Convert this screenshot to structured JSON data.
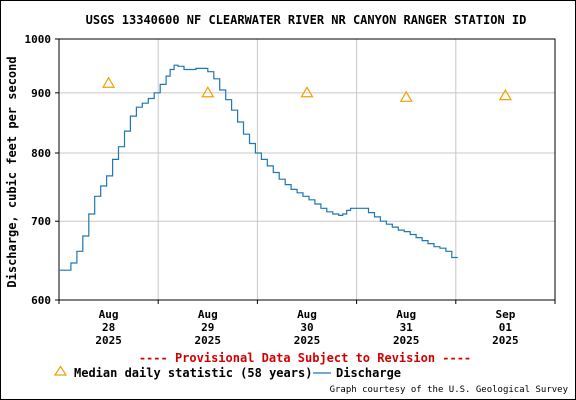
{
  "chart_data": {
    "type": "line",
    "title": "USGS 13340600 NF CLEARWATER RIVER NR CANYON RANGER STATION ID",
    "ylabel": "Discharge, cubic feet per second",
    "xlabel": "",
    "y_scale": "log",
    "ylim": [
      600,
      1000
    ],
    "y_ticks": [
      600,
      700,
      800,
      900,
      1000
    ],
    "y_tick_labels": [
      "600",
      "700",
      "800",
      "900",
      "1000"
    ],
    "x_range_days": [
      0,
      2.0
    ],
    "x_ticks": [
      {
        "day": 0.5,
        "lines": [
          "Aug",
          "28",
          "2025"
        ]
      },
      {
        "day": 1.5,
        "lines": [
          "Aug",
          "29",
          "2025"
        ]
      },
      {
        "day": 2.5,
        "lines": [
          "Aug",
          "30",
          "2025"
        ]
      },
      {
        "day": 3.5,
        "lines": [
          "Aug",
          "31",
          "2025"
        ]
      },
      {
        "day": 4.5,
        "lines": [
          "Sep",
          "01",
          "2025"
        ]
      }
    ],
    "x_range": [
      0,
      5
    ],
    "grid": true,
    "provisional_note": "---- Provisional Data Subject to Revision ----",
    "series": [
      {
        "name": "Discharge",
        "color": "#1f77b4",
        "style": "line",
        "points": [
          [
            0.0,
            636
          ],
          [
            0.08,
            636
          ],
          [
            0.12,
            645
          ],
          [
            0.18,
            660
          ],
          [
            0.24,
            680
          ],
          [
            0.3,
            710
          ],
          [
            0.36,
            735
          ],
          [
            0.42,
            750
          ],
          [
            0.48,
            765
          ],
          [
            0.54,
            790
          ],
          [
            0.6,
            810
          ],
          [
            0.66,
            835
          ],
          [
            0.72,
            860
          ],
          [
            0.78,
            875
          ],
          [
            0.84,
            882
          ],
          [
            0.9,
            890
          ],
          [
            0.96,
            900
          ],
          [
            1.02,
            915
          ],
          [
            1.08,
            930
          ],
          [
            1.12,
            942
          ],
          [
            1.16,
            950
          ],
          [
            1.2,
            948
          ],
          [
            1.26,
            942
          ],
          [
            1.32,
            942
          ],
          [
            1.38,
            944
          ],
          [
            1.44,
            944
          ],
          [
            1.5,
            938
          ],
          [
            1.56,
            925
          ],
          [
            1.62,
            905
          ],
          [
            1.68,
            888
          ],
          [
            1.74,
            870
          ],
          [
            1.8,
            850
          ],
          [
            1.86,
            830
          ],
          [
            1.92,
            815
          ],
          [
            1.98,
            800
          ],
          [
            2.04,
            790
          ],
          [
            2.1,
            780
          ],
          [
            2.16,
            770
          ],
          [
            2.22,
            760
          ],
          [
            2.28,
            752
          ],
          [
            2.34,
            745
          ],
          [
            2.4,
            740
          ],
          [
            2.46,
            735
          ],
          [
            2.52,
            730
          ],
          [
            2.58,
            724
          ],
          [
            2.64,
            718
          ],
          [
            2.7,
            713
          ],
          [
            2.76,
            710
          ],
          [
            2.82,
            708
          ],
          [
            2.86,
            710
          ],
          [
            2.9,
            715
          ],
          [
            2.94,
            718
          ],
          [
            3.0,
            718
          ],
          [
            3.06,
            718
          ],
          [
            3.12,
            712
          ],
          [
            3.18,
            706
          ],
          [
            3.24,
            700
          ],
          [
            3.3,
            696
          ],
          [
            3.36,
            692
          ],
          [
            3.42,
            688
          ],
          [
            3.48,
            686
          ],
          [
            3.54,
            682
          ],
          [
            3.6,
            678
          ],
          [
            3.66,
            674
          ],
          [
            3.72,
            670
          ],
          [
            3.78,
            666
          ],
          [
            3.84,
            664
          ],
          [
            3.9,
            660
          ],
          [
            3.96,
            652
          ],
          [
            4.02,
            652
          ]
        ]
      },
      {
        "name": "Median daily statistic (58 years)",
        "color": "#f0a000",
        "style": "triangle",
        "points": [
          [
            0.5,
            918
          ],
          [
            1.5,
            901
          ],
          [
            2.5,
            901
          ],
          [
            3.5,
            893
          ],
          [
            4.5,
            896
          ]
        ]
      }
    ]
  },
  "legend": {
    "median_label": "Median daily statistic (58 years)",
    "discharge_label": "Discharge"
  },
  "credit": "Graph courtesy of the U.S. Geological Survey"
}
